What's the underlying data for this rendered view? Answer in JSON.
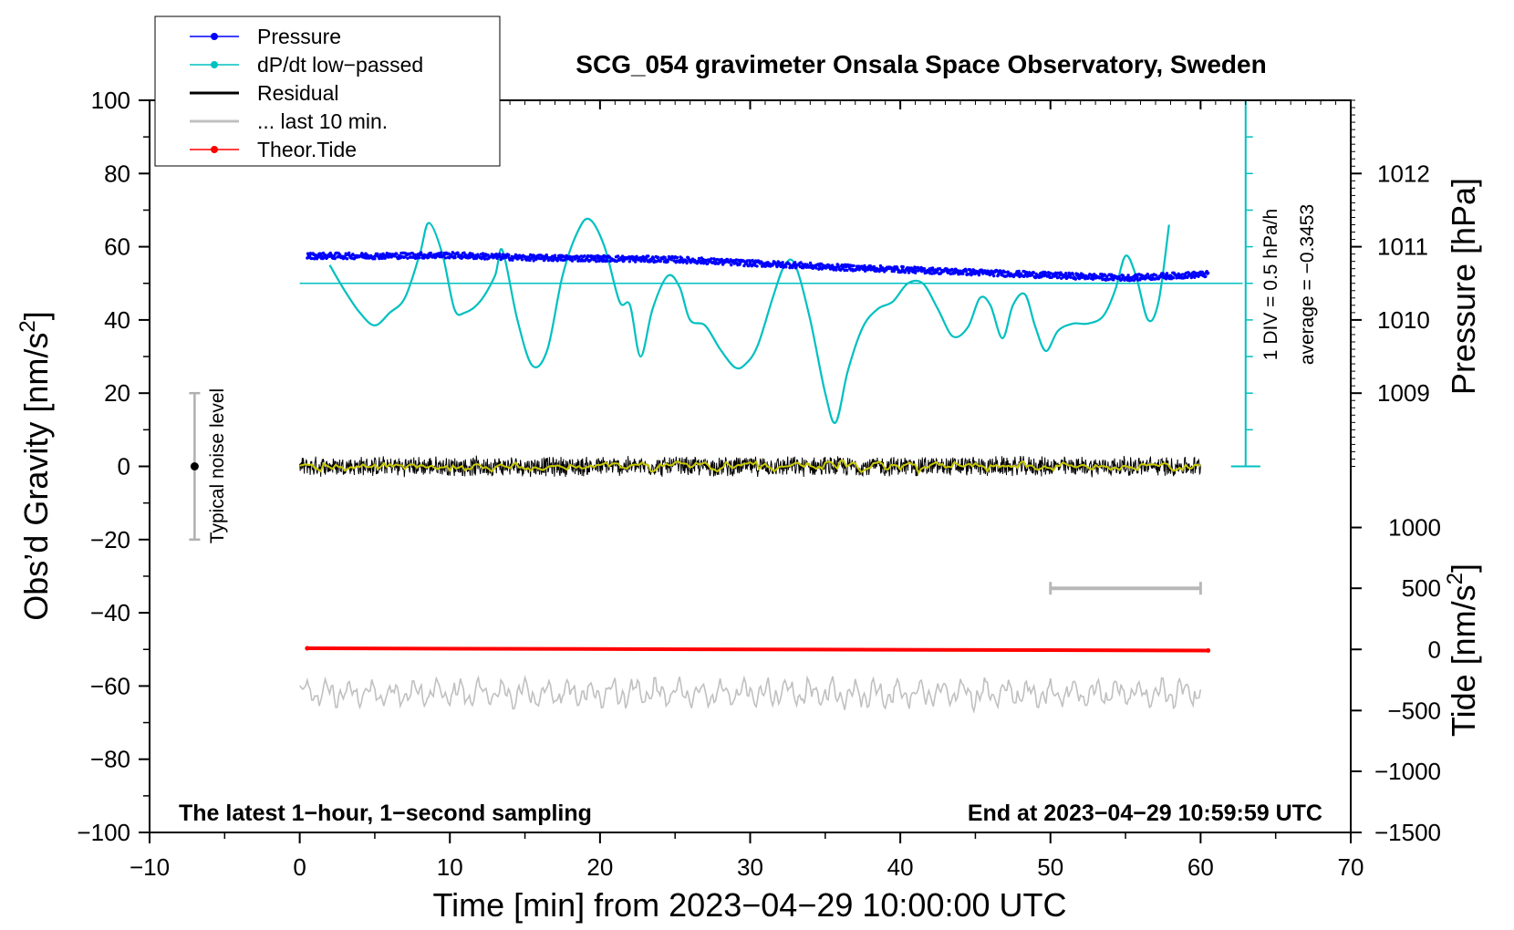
{
  "chart_data": {
    "type": "line",
    "title": "SCG_054 gravimeter Onsala Space Observatory, Sweden",
    "xlabel": "Time [min] from 2023−04−29 10:00:00 UTC",
    "ylabel_left": "Obs’d Gravity [nm/s",
    "ylabel_left_sup": "2",
    "ylabel_left_close": "]",
    "ylabel_right_pressure": "Pressure [hPa]",
    "ylabel_right_tide": "Tide [nm/s",
    "ylabel_right_tide_sup": "2",
    "ylabel_right_tide_close": "]",
    "xlim": [
      -10,
      70
    ],
    "ylim": [
      -100,
      100
    ],
    "x_ticks": [
      -10,
      0,
      10,
      20,
      30,
      40,
      50,
      60,
      70
    ],
    "x_tick_labels": [
      "−10",
      "0",
      "10",
      "20",
      "30",
      "40",
      "50",
      "60",
      "70"
    ],
    "y_ticks": [
      100,
      80,
      60,
      40,
      20,
      0,
      -20,
      -40,
      -60,
      -80,
      -100
    ],
    "y_tick_labels": [
      "100",
      "80",
      "60",
      "40",
      "20",
      "0",
      "−20",
      "−40",
      "−60",
      "−80",
      "−100"
    ],
    "pressure_axis": {
      "ticks": [
        1012,
        1011,
        1010,
        1009
      ],
      "tick_labels": [
        "1012",
        "1011",
        "1010",
        "1009"
      ],
      "gravity_equiv": [
        80,
        60,
        40,
        20
      ]
    },
    "tide_axis": {
      "ticks": [
        1000,
        500,
        0,
        -500,
        -1000,
        -1500
      ],
      "tick_labels": [
        "1000",
        "500",
        "0",
        "−500",
        "−1000",
        "−1500"
      ],
      "gravity_equiv": [
        -16.7,
        -33.3,
        -50,
        -66.7,
        -83.3,
        -100
      ]
    },
    "dpdt_scale": {
      "label_div": "1 DIV = 0.5 hPa/h",
      "label_avg": "average = −0.3453",
      "x": 63,
      "y_range": [
        0,
        100
      ],
      "divisions": 10
    },
    "noise_bar": {
      "label": "Typical noise level",
      "x": -7,
      "center": 0,
      "range": [
        -20,
        20
      ]
    },
    "last10_bar": {
      "x_range": [
        50,
        60
      ],
      "y": -33.3
    },
    "legend": [
      {
        "name": "Pressure",
        "color": "#0000ff",
        "marker": true
      },
      {
        "name": "dP/dt low−passed",
        "color": "#00c0c0",
        "marker": true
      },
      {
        "name": "Residual",
        "color": "#000000",
        "marker": false
      },
      {
        "name": "... last 10 min.",
        "color": "#c0c0c0",
        "marker": false
      },
      {
        "name": "Theor.Tide",
        "color": "#ff0000",
        "marker": true
      }
    ],
    "series": [
      {
        "name": "Pressure",
        "color": "#0000ff",
        "x": [
          0.5,
          5,
          10,
          15,
          20,
          25,
          30,
          33,
          35,
          40,
          45,
          50,
          55,
          60.5
        ],
        "values": [
          57.5,
          57.5,
          57.7,
          57.0,
          56.8,
          56.5,
          55.5,
          55.0,
          54.5,
          53.8,
          53.0,
          52.2,
          51.5,
          52.5
        ]
      },
      {
        "name": "dP/dt low−passed",
        "color": "#00c0c0",
        "x": [
          2,
          3,
          4,
          5,
          6,
          7,
          8,
          8.6,
          9.5,
          10.3,
          11,
          12,
          13,
          13.5,
          14.5,
          15.5,
          16.5,
          17.5,
          18.5,
          19.3,
          20.3,
          21.3,
          22,
          22.7,
          23.5,
          24.5,
          25.3,
          26,
          27,
          28,
          29,
          29.7,
          30.5,
          31.5,
          32.3,
          33,
          34,
          35,
          35.7,
          36.5,
          37.5,
          38.5,
          39.5,
          40.5,
          41.5,
          42.5,
          43.5,
          44.5,
          45.3,
          46,
          46.8,
          47.5,
          48.3,
          49,
          49.7,
          50.5,
          51.5,
          52.5,
          53.5,
          54.3,
          55,
          55.7,
          56.5,
          57.2,
          57.9
        ],
        "values": [
          55,
          48,
          42,
          38.5,
          42,
          46,
          58,
          66.5,
          58,
          43,
          42,
          45,
          52,
          59,
          40,
          27.5,
          32,
          52,
          64,
          67.5,
          60,
          45,
          44,
          30,
          43,
          52,
          49,
          40,
          38.5,
          32,
          27,
          28,
          33,
          46,
          55,
          55,
          40,
          20,
          12,
          26,
          38,
          43,
          45,
          50,
          50,
          43,
          35.5,
          38,
          46,
          44,
          35,
          44,
          47,
          38,
          31.5,
          37,
          39,
          39,
          41,
          48,
          57.5,
          52,
          40,
          45,
          66
        ]
      },
      {
        "name": "Residual",
        "color": "#000000",
        "x_range": [
          0,
          60
        ],
        "center": 0,
        "amplitude": 3
      },
      {
        "name": "... last 10 min.",
        "color": "#c0c0c0",
        "x_range": [
          0,
          60
        ],
        "center": -62,
        "amplitude": 4
      },
      {
        "name": "Theor.Tide",
        "color": "#ff0000",
        "x": [
          0.5,
          60.5
        ],
        "values": [
          -49.7,
          -50.3
        ]
      }
    ],
    "annotations": {
      "left": "The latest 1−hour, 1−second sampling",
      "right": "End at 2023−04−29 10:59:59 UTC"
    }
  }
}
